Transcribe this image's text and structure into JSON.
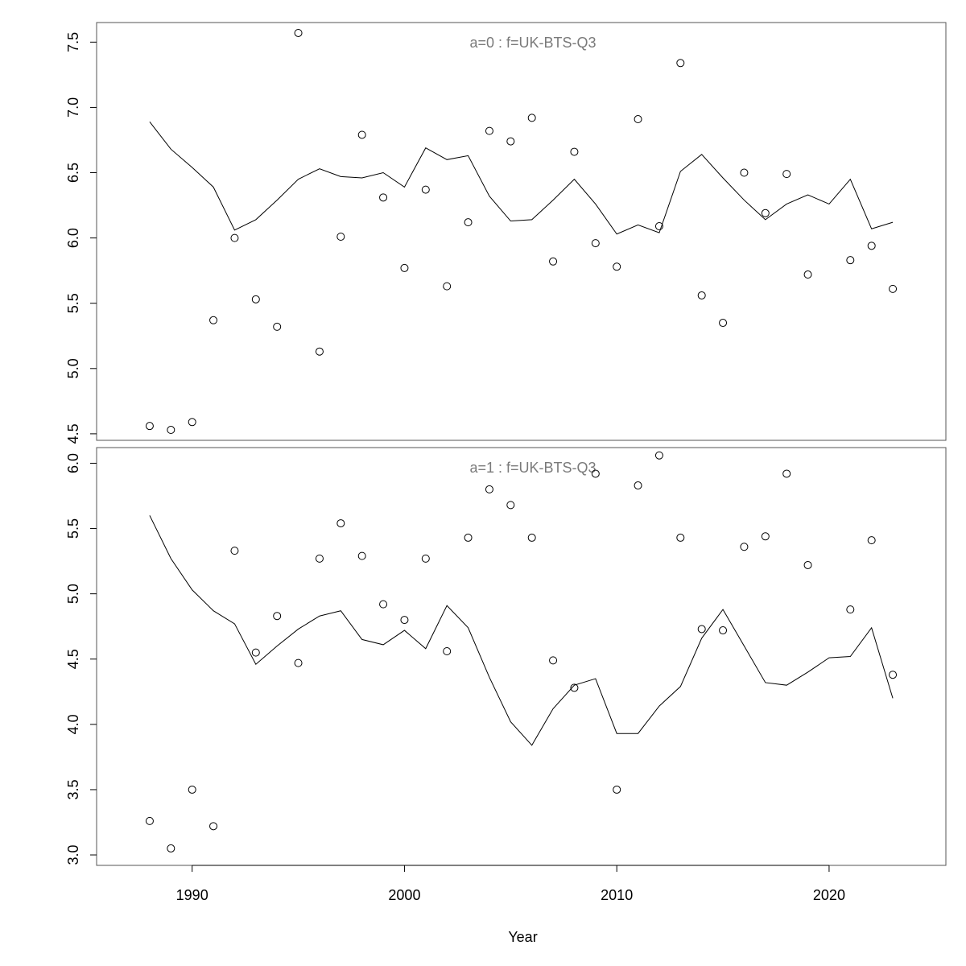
{
  "chart_data": {
    "type": "scatter",
    "xlabel": "Year",
    "xlim": [
      1985.5,
      2025.5
    ],
    "xticks": [
      1990,
      2000,
      2010,
      2020
    ],
    "panels": [
      {
        "title": "a=0  :  f=UK-BTS-Q3",
        "ylim": [
          4.45,
          7.65
        ],
        "yticks": [
          "4.5",
          "5.0",
          "5.5",
          "6.0",
          "6.5",
          "7.0",
          "7.5"
        ],
        "points": {
          "x": [
            1988,
            1989,
            1990,
            1991,
            1992,
            1993,
            1994,
            1995,
            1996,
            1997,
            1998,
            1999,
            2000,
            2001,
            2002,
            2003,
            2004,
            2005,
            2006,
            2007,
            2008,
            2009,
            2010,
            2011,
            2012,
            2013,
            2014,
            2015,
            2016,
            2017,
            2018,
            2019,
            2021,
            2022,
            2023
          ],
          "y": [
            4.56,
            4.53,
            4.59,
            5.37,
            6.0,
            5.53,
            5.32,
            7.57,
            5.13,
            6.01,
            6.79,
            6.31,
            5.77,
            6.37,
            5.63,
            6.12,
            6.82,
            6.74,
            6.92,
            5.82,
            6.66,
            5.96,
            5.78,
            6.91,
            6.09,
            7.34,
            5.56,
            5.35,
            6.5,
            6.19,
            6.49,
            5.72,
            5.83,
            5.94,
            5.61
          ]
        },
        "line": {
          "x": [
            1988,
            1989,
            1990,
            1991,
            1992,
            1993,
            1994,
            1995,
            1996,
            1997,
            1998,
            1999,
            2000,
            2001,
            2002,
            2003,
            2004,
            2005,
            2006,
            2007,
            2008,
            2009,
            2010,
            2011,
            2012,
            2013,
            2014,
            2015,
            2016,
            2017,
            2018,
            2019,
            2020,
            2021,
            2022,
            2023
          ],
          "y": [
            6.89,
            6.68,
            6.54,
            6.39,
            6.06,
            6.14,
            6.29,
            6.45,
            6.53,
            6.47,
            6.46,
            6.5,
            6.39,
            6.69,
            6.6,
            6.63,
            6.32,
            6.13,
            6.14,
            6.29,
            6.45,
            6.26,
            6.03,
            6.1,
            6.04,
            6.51,
            6.64,
            6.46,
            6.29,
            6.14,
            6.26,
            6.33,
            6.26,
            6.45,
            6.07,
            6.12
          ]
        }
      },
      {
        "title": "a=1  :  f=UK-BTS-Q3",
        "ylim": [
          2.92,
          6.12
        ],
        "yticks": [
          "3.0",
          "3.5",
          "4.0",
          "4.5",
          "5.0",
          "5.5",
          "6.0"
        ],
        "points": {
          "x": [
            1988,
            1989,
            1990,
            1991,
            1992,
            1993,
            1994,
            1995,
            1996,
            1997,
            1998,
            1999,
            2000,
            2001,
            2002,
            2003,
            2004,
            2005,
            2006,
            2007,
            2008,
            2009,
            2010,
            2011,
            2012,
            2013,
            2014,
            2015,
            2016,
            2017,
            2018,
            2019,
            2021,
            2022,
            2023
          ],
          "y": [
            3.26,
            3.05,
            3.5,
            3.22,
            5.33,
            4.55,
            4.83,
            4.47,
            5.27,
            5.54,
            5.29,
            4.92,
            4.8,
            5.27,
            4.56,
            5.43,
            5.8,
            5.68,
            5.43,
            4.49,
            4.28,
            5.92,
            3.5,
            5.83,
            6.06,
            5.43,
            4.73,
            4.72,
            5.36,
            5.44,
            5.92,
            5.22,
            4.88,
            5.41,
            4.38
          ]
        },
        "line": {
          "x": [
            1988,
            1989,
            1990,
            1991,
            1992,
            1993,
            1994,
            1995,
            1996,
            1997,
            1998,
            1999,
            2000,
            2001,
            2002,
            2003,
            2004,
            2005,
            2006,
            2007,
            2008,
            2009,
            2010,
            2011,
            2012,
            2013,
            2014,
            2015,
            2016,
            2017,
            2018,
            2019,
            2020,
            2021,
            2022,
            2023
          ],
          "y": [
            5.6,
            5.27,
            5.03,
            4.87,
            4.77,
            4.46,
            4.6,
            4.73,
            4.83,
            4.87,
            4.65,
            4.61,
            4.72,
            4.58,
            4.91,
            4.74,
            4.36,
            4.02,
            3.84,
            4.12,
            4.3,
            4.35,
            3.93,
            3.93,
            4.14,
            4.29,
            4.66,
            4.88,
            4.6,
            4.32,
            4.3,
            4.4,
            4.51,
            4.52,
            4.74,
            4.2
          ]
        }
      }
    ]
  }
}
